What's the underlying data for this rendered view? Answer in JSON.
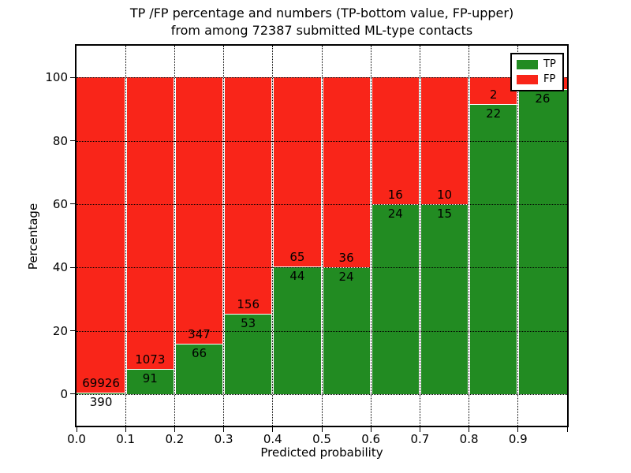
{
  "title": {
    "line1": "TP /FP percentage and numbers (TP-bottom value, FP-upper)",
    "line2": "from among 72387 submitted ML-type contacts"
  },
  "axes": {
    "xlabel": "Predicted probability",
    "ylabel": "Percentage",
    "x_ticks": [
      "0.0",
      "0.1",
      "0.2",
      "0.3",
      "0.4",
      "0.5",
      "0.6",
      "0.7",
      "0.8",
      "0.9"
    ],
    "y_ticks": [
      "0",
      "20",
      "40",
      "60",
      "80",
      "100"
    ]
  },
  "legend": [
    {
      "label": "TP",
      "color": "#228b22",
      "swatch": "green-swatch"
    },
    {
      "label": "FP",
      "color": "#f92519",
      "swatch": "red-swatch"
    }
  ],
  "colors": {
    "tp": "#228b22",
    "fp": "#f92519",
    "grid": "#000000",
    "background": "#ffffff"
  },
  "chart_data": {
    "type": "bar",
    "stacked": true,
    "normalized_to_100": true,
    "title": "TP /FP percentage and numbers (TP-bottom value, FP-upper) from among 72387 submitted ML-type contacts",
    "xlabel": "Predicted probability",
    "ylabel": "Percentage",
    "xlim": [
      0.0,
      1.0
    ],
    "ylim": [
      -10,
      110
    ],
    "grid": true,
    "legend_position": "upper right",
    "total_contacts": 72387,
    "bin_width": 0.1,
    "bins": [
      {
        "range": "0.0-0.1",
        "tp": 390,
        "fp": 69926,
        "tp_label": "390",
        "fp_label": "69926"
      },
      {
        "range": "0.1-0.2",
        "tp": 91,
        "fp": 1073,
        "tp_label": "91",
        "fp_label": "1073"
      },
      {
        "range": "0.2-0.3",
        "tp": 66,
        "fp": 347,
        "tp_label": "66",
        "fp_label": "347"
      },
      {
        "range": "0.3-0.4",
        "tp": 53,
        "fp": 156,
        "tp_label": "53",
        "fp_label": "156"
      },
      {
        "range": "0.4-0.5",
        "tp": 44,
        "fp": 65,
        "tp_label": "44",
        "fp_label": "65"
      },
      {
        "range": "0.5-0.6",
        "tp": 24,
        "fp": 36,
        "tp_label": "24",
        "fp_label": "36"
      },
      {
        "range": "0.6-0.7",
        "tp": 24,
        "fp": 16,
        "tp_label": "24",
        "fp_label": "16"
      },
      {
        "range": "0.7-0.8",
        "tp": 15,
        "fp": 10,
        "tp_label": "15",
        "fp_label": "10"
      },
      {
        "range": "0.8-0.9",
        "tp": 22,
        "fp": 2,
        "tp_label": "22",
        "fp_label": "2"
      },
      {
        "range": "0.9-1.0",
        "tp": 26,
        "fp": 1,
        "tp_label": "26",
        "fp_label": ""
      }
    ]
  }
}
